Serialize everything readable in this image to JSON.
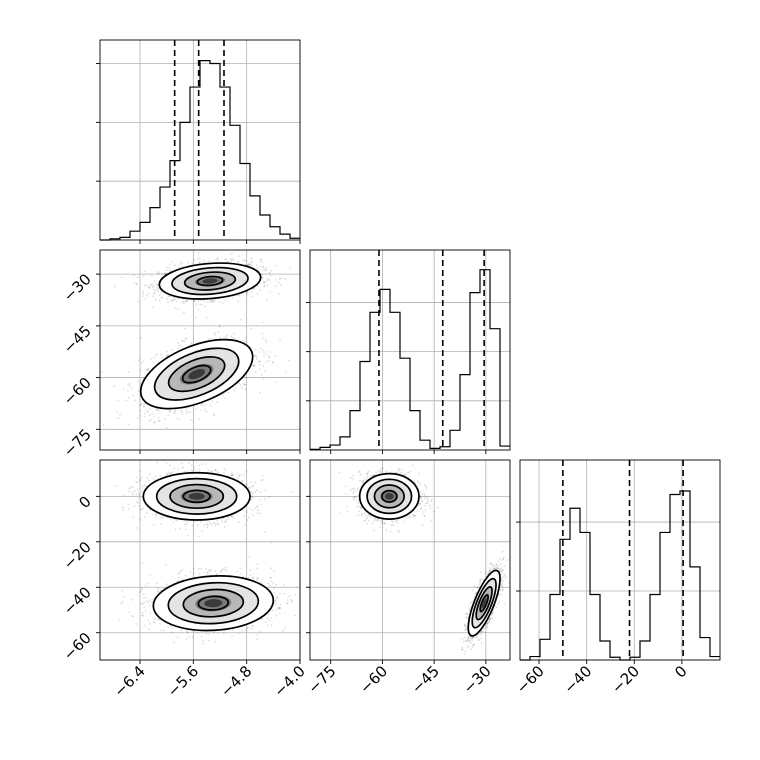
{
  "chart_data": [
    {
      "type": "histogram",
      "panel": "p00",
      "var": "x0",
      "xlim": [
        -7.0,
        -4.0
      ],
      "bins": [
        -7.0,
        -6.85,
        -6.7,
        -6.55,
        -6.4,
        -6.25,
        -6.1,
        -5.95,
        -5.8,
        -5.65,
        -5.5,
        -5.35,
        -5.2,
        -5.05,
        -4.9,
        -4.75,
        -4.6,
        -4.45,
        -4.3,
        -4.15,
        -4.0
      ],
      "counts": [
        0,
        4,
        9,
        30,
        60,
        110,
        180,
        270,
        400,
        520,
        610,
        600,
        520,
        390,
        260,
        150,
        85,
        45,
        20,
        6
      ],
      "quantiles": [
        -5.88,
        -5.52,
        -5.14
      ],
      "ymax": 680,
      "ygrid": [
        200,
        400,
        600
      ]
    },
    {
      "type": "histogram",
      "panel": "p11",
      "var": "x1",
      "xlim": [
        -81,
        -23
      ],
      "bins": [
        -81,
        -78.1,
        -75.2,
        -72.3,
        -69.4,
        -66.5,
        -63.6,
        -60.7,
        -57.8,
        -54.9,
        -52,
        -49.1,
        -46.2,
        -43.3,
        -40.4,
        -37.5,
        -34.6,
        -31.7,
        -28.8,
        -25.9,
        -23
      ],
      "counts": [
        2,
        8,
        15,
        40,
        120,
        270,
        420,
        490,
        420,
        280,
        120,
        30,
        5,
        10,
        60,
        230,
        480,
        550,
        370,
        12
      ],
      "quantiles": [
        -61,
        -42.5,
        -30.5
      ],
      "ymax": 610,
      "ygrid": [
        150,
        300,
        450
      ]
    },
    {
      "type": "histogram",
      "panel": "p22",
      "var": "x2",
      "xlim": [
        -68,
        16
      ],
      "bins": [
        -68,
        -63.8,
        -59.6,
        -55.4,
        -51.2,
        -47,
        -42.8,
        -38.6,
        -34.4,
        -30.2,
        -26,
        -21.8,
        -17.6,
        -13.4,
        -9.2,
        -5,
        -0.8,
        3.4,
        7.6,
        11.8,
        16
      ],
      "counts": [
        0,
        10,
        60,
        190,
        350,
        440,
        370,
        190,
        55,
        8,
        0,
        8,
        55,
        190,
        370,
        480,
        490,
        270,
        65,
        10
      ],
      "quantiles": [
        -50,
        -22,
        0.5
      ],
      "ymax": 580,
      "ygrid": [
        200,
        400
      ]
    },
    {
      "type": "scatter",
      "panel": "p10",
      "xvar": "x0",
      "yvar": "x1",
      "xlim": [
        -7.0,
        -4.0
      ],
      "ylim": [
        -81,
        -23
      ],
      "clusters": [
        {
          "cx": -5.35,
          "cy": -32,
          "sx": 0.38,
          "sy": 2.6,
          "rho": 0.2,
          "n": 1600
        },
        {
          "cx": -5.55,
          "cy": -59,
          "sx": 0.42,
          "sy": 5.0,
          "rho": 0.5,
          "n": 1600
        }
      ]
    },
    {
      "type": "scatter",
      "panel": "p20",
      "xvar": "x0",
      "yvar": "x2",
      "xlim": [
        -7.0,
        -4.0
      ],
      "ylim": [
        -72,
        16
      ],
      "clusters": [
        {
          "cx": -5.55,
          "cy": 0,
          "sx": 0.4,
          "sy": 5.2,
          "rho": 0.0,
          "n": 1600
        },
        {
          "cx": -5.3,
          "cy": -47,
          "sx": 0.45,
          "sy": 6.0,
          "rho": 0.1,
          "n": 1600
        }
      ]
    },
    {
      "type": "scatter",
      "panel": "p21",
      "xvar": "x1",
      "yvar": "x2",
      "xlim": [
        -81,
        -23
      ],
      "ylim": [
        -72,
        16
      ],
      "clusters": [
        {
          "cx": -58,
          "cy": 0,
          "sx": 4.3,
          "sy": 5.0,
          "rho": 0.0,
          "n": 1600
        },
        {
          "cx": -30.5,
          "cy": -47,
          "sx": 2.3,
          "sy": 7.2,
          "rho": 0.75,
          "n": 1600
        }
      ]
    }
  ],
  "ticks": {
    "x0": [
      "−6.4",
      "−5.6",
      "−4.8",
      "−4.0"
    ],
    "x1": [
      "−75",
      "−60",
      "−45",
      "−30"
    ],
    "x2": [
      "−60",
      "−40",
      "−20",
      "0"
    ]
  },
  "tick_values": {
    "x0": [
      -6.4,
      -5.6,
      -4.8,
      -4.0
    ],
    "x1": [
      -75,
      -60,
      -45,
      -30
    ],
    "x2": [
      -60,
      -40,
      -20,
      0
    ]
  }
}
